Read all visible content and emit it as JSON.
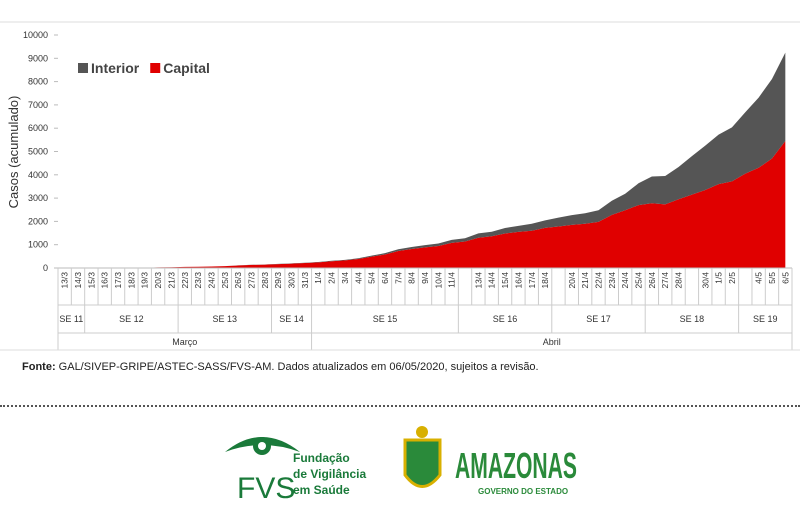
{
  "chart_data": {
    "type": "stacked_area",
    "y_label": "Casos (acumulado)",
    "categories": [
      "13/3",
      "14/3",
      "15/3",
      "16/3",
      "17/3",
      "18/3",
      "19/3",
      "20/3",
      "21/3",
      "22/3",
      "23/3",
      "24/3",
      "25/3",
      "26/3",
      "27/3",
      "28/3",
      "29/3",
      "30/3",
      "31/3",
      "1/4",
      "2/4",
      "3/4",
      "4/4",
      "5/4",
      "6/4",
      "7/4",
      "8/4",
      "9/4",
      "10/4",
      "11/4",
      null,
      "13/4",
      "14/4",
      "15/4",
      "16/4",
      "17/4",
      "18/4",
      null,
      "20/4",
      "21/4",
      "22/4",
      "23/4",
      "24/4",
      "25/4",
      "26/4",
      "27/4",
      "28/4",
      null,
      "30/4",
      "1/5",
      "2/5",
      null,
      "4/5",
      "5/5",
      "6/5"
    ],
    "series": [
      {
        "name": "Interior",
        "color": "#555555",
        "values": [
          0,
          0,
          0,
          0,
          0,
          0,
          0,
          0,
          0,
          1,
          1,
          2,
          3,
          5,
          6,
          7,
          9,
          11,
          15,
          17,
          21,
          25,
          32,
          42,
          56,
          74,
          84,
          96,
          105,
          126,
          140,
          184,
          194,
          239,
          259,
          297,
          324,
          380,
          420,
          451,
          499,
          608,
          705,
          935,
          1148,
          1218,
          1387,
          1651,
          1904,
          2123,
          2318,
          2633,
          3014,
          3409,
          3793
        ]
      },
      {
        "name": "Capital",
        "color": "#e00000",
        "values": [
          1,
          1,
          2,
          2,
          3,
          3,
          11,
          26,
          32,
          46,
          53,
          65,
          78,
          106,
          134,
          144,
          166,
          189,
          212,
          243,
          290,
          325,
          385,
          490,
          580,
          730,
          815,
          885,
          945,
          1080,
          1135,
          1300,
          1360,
          1480,
          1550,
          1600,
          1720,
          1780,
          1850,
          1900,
          1980,
          2280,
          2480,
          2700,
          2780,
          2730,
          2950,
          3150,
          3350,
          3600,
          3720,
          4050,
          4300,
          4700,
          5450
        ]
      }
    ],
    "week_groups": [
      "SE 11",
      "SE 12",
      "SE 13",
      "SE 14",
      "SE 15",
      "SE 16",
      "SE 17",
      "SE 18",
      "SE 19"
    ],
    "months": [
      "Março",
      "Abril"
    ],
    "ylim": [
      0,
      10000
    ],
    "yticks": [
      0,
      1000,
      2000,
      3000,
      4000,
      5000,
      6000,
      7000,
      8000,
      9000,
      10000
    ],
    "legend": "top-left"
  },
  "source": {
    "label": "Fonte:",
    "text": "GAL/SIVEP-GRIPE/ASTEC-SASS/FVS-AM. Dados atualizados em 06/05/2020, sujeitos a revisão."
  },
  "logos": {
    "fvs_acronym": "FVS",
    "fvs_lines": [
      "Fundação",
      "de Vigilância",
      "em Saúde"
    ],
    "state": "AMAZONAS",
    "state_sub": "GOVERNO DO ESTADO"
  }
}
